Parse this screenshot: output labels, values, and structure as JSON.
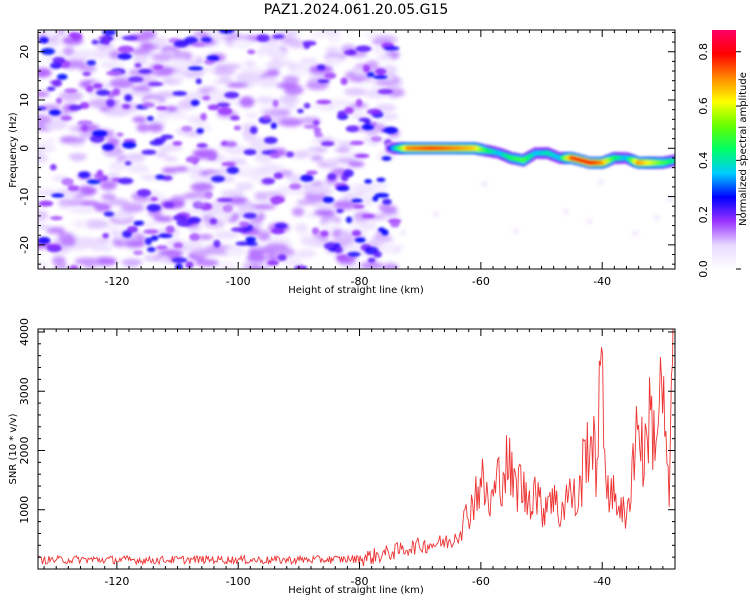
{
  "title": "PAZ1.2024.061.20.05.G15",
  "chart_data": [
    {
      "type": "heatmap",
      "xlabel": "Height of straight line (km)",
      "ylabel": "Frequency (Hz)",
      "xlim": [
        -133,
        -28
      ],
      "ylim": [
        -25,
        24.5
      ],
      "xticks": [
        -120,
        -100,
        -80,
        -60,
        -40
      ],
      "yticks": [
        -20,
        -10,
        0,
        10,
        20
      ],
      "colorbar": {
        "label": "Normalized spectral amplitude",
        "range": [
          0.0,
          0.88
        ],
        "ticks": [
          0.0,
          0.2,
          0.4,
          0.6,
          0.8
        ],
        "colormap": [
          "#ffffff",
          "#e8d8ff",
          "#9933ff",
          "#0000ff",
          "#00ccff",
          "#00ff66",
          "#66ff00",
          "#ffff00",
          "#ff8800",
          "#ff0000",
          "#ff0066"
        ]
      },
      "noise_region": {
        "x_range": [
          -133,
          -74
        ],
        "y_range": [
          -25,
          24.5
        ]
      },
      "signal_track": {
        "x": [
          -75,
          -72,
          -68,
          -64,
          -61,
          -59,
          -57,
          -55,
          -53,
          -51,
          -49,
          -47,
          -45,
          -42,
          -40,
          -38,
          -36,
          -34,
          -32,
          -30,
          -28
        ],
        "y": [
          0.0,
          0.0,
          0.0,
          0.0,
          0.0,
          -0.5,
          -1.0,
          -2.0,
          -2.5,
          -1.0,
          -1.0,
          -2.0,
          -2.0,
          -3.0,
          -3.0,
          -2.0,
          -2.0,
          -3.0,
          -3.0,
          -3.0,
          -2.5
        ],
        "amplitude": [
          0.25,
          0.7,
          0.75,
          0.7,
          0.65,
          0.45,
          0.35,
          0.45,
          0.5,
          0.35,
          0.4,
          0.35,
          0.75,
          0.8,
          0.7,
          0.45,
          0.35,
          0.7,
          0.6,
          0.5,
          0.4
        ]
      }
    },
    {
      "type": "line",
      "xlabel": "Height of straight line (km)",
      "ylabel": "SNR (10 * v/v)",
      "xlim": [
        -133,
        -28
      ],
      "ylim": [
        0,
        4050
      ],
      "xticks": [
        -120,
        -100,
        -80,
        -60,
        -40
      ],
      "yticks": [
        1000,
        2000,
        3000,
        4000
      ],
      "color": "#ee3333",
      "series": [
        {
          "x": [
            -133,
            -125,
            -115,
            -105,
            -95,
            -85,
            -80,
            -77,
            -74,
            -71,
            -68,
            -65,
            -63,
            -61.5,
            -60,
            -58.5,
            -57,
            -55.5,
            -54.5,
            -53.5,
            -52.5,
            -51,
            -50,
            -48.5,
            -47,
            -46,
            -45,
            -44,
            -43,
            -42,
            -41,
            -40.5,
            -40,
            -39.5,
            -38.5,
            -37,
            -36,
            -35,
            -34,
            -33,
            -32.5,
            -31.5,
            -31,
            -30,
            -29.5,
            -29,
            -28.5,
            -28
          ],
          "y": [
            150,
            160,
            150,
            160,
            150,
            160,
            170,
            230,
            300,
            380,
            420,
            470,
            750,
            1100,
            1500,
            1050,
            1550,
            1800,
            1350,
            1500,
            1150,
            1400,
            950,
            1350,
            900,
            1250,
            1250,
            1050,
            1850,
            2300,
            1700,
            3000,
            2900,
            1800,
            1200,
            1150,
            700,
            1900,
            2550,
            1700,
            2700,
            2300,
            2400,
            3100,
            1900,
            1100,
            3350,
            3950
          ]
        }
      ]
    }
  ]
}
